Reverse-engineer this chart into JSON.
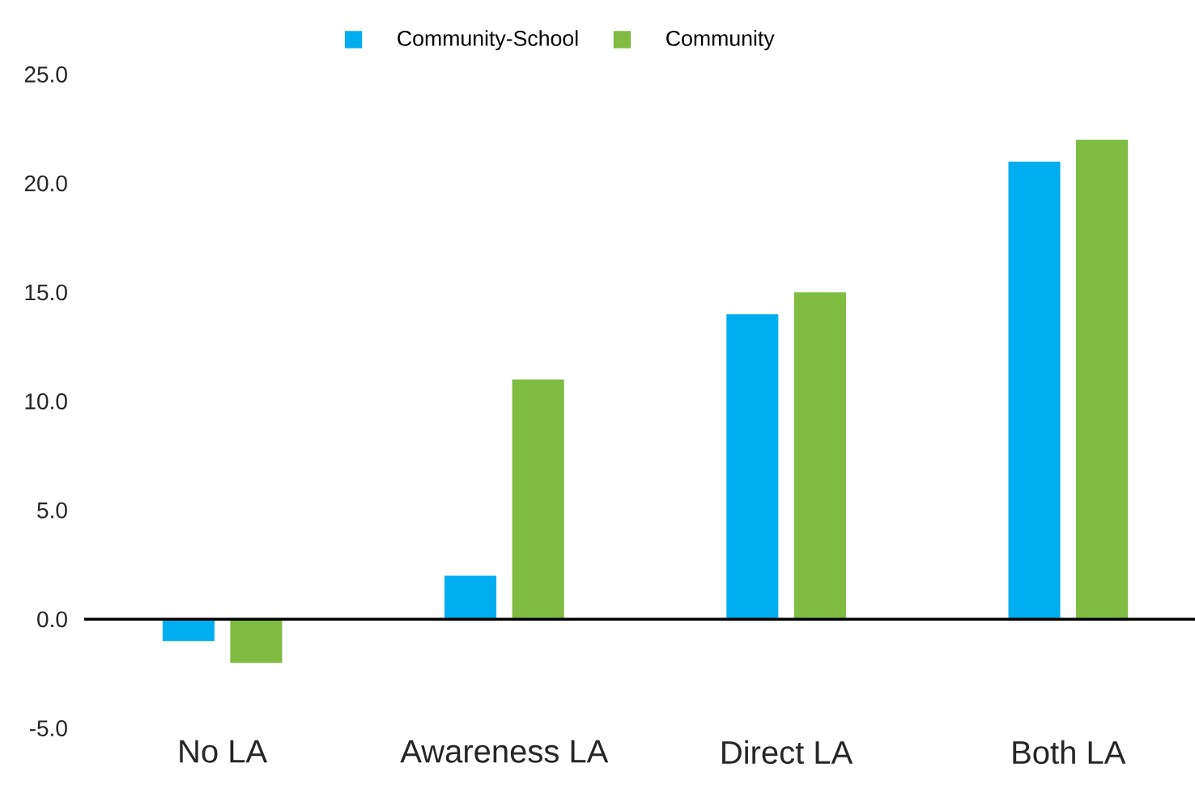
{
  "chart_data": {
    "type": "bar",
    "categories": [
      "No LA",
      "Awareness LA",
      "Direct LA",
      "Both LA"
    ],
    "series": [
      {
        "name": "Community-School",
        "color": "#00aeef",
        "values": [
          -1,
          2,
          14,
          21
        ]
      },
      {
        "name": "Community",
        "color": "#7fbc41",
        "values": [
          -2,
          11,
          15,
          22
        ]
      }
    ],
    "ylim": [
      -5,
      25
    ],
    "yticks": [
      {
        "value": -5,
        "label": "-5.0"
      },
      {
        "value": 0,
        "label": "0.0"
      },
      {
        "value": 5,
        "label": "5.0"
      },
      {
        "value": 10,
        "label": "10.0"
      },
      {
        "value": 15,
        "label": "15.0"
      },
      {
        "value": 20,
        "label": "20.0"
      },
      {
        "value": 25,
        "label": "25.0"
      }
    ],
    "legend": "top"
  }
}
